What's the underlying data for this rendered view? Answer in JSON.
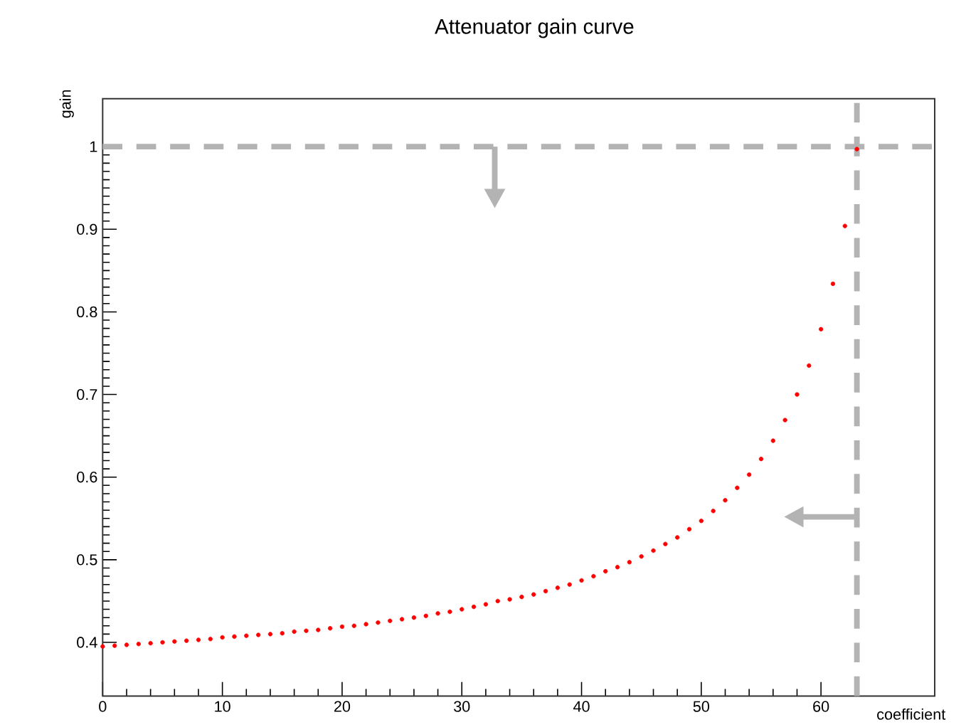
{
  "chart_data": {
    "type": "scatter",
    "title": "Attenuator gain curve",
    "xlabel": "coefficient",
    "ylabel": "gain",
    "x": [
      0,
      1,
      2,
      3,
      4,
      5,
      6,
      7,
      8,
      9,
      10,
      11,
      12,
      13,
      14,
      15,
      16,
      17,
      18,
      19,
      20,
      21,
      22,
      23,
      24,
      25,
      26,
      27,
      28,
      29,
      30,
      31,
      32,
      33,
      34,
      35,
      36,
      37,
      38,
      39,
      40,
      41,
      42,
      43,
      44,
      45,
      46,
      47,
      48,
      49,
      50,
      51,
      52,
      53,
      54,
      55,
      56,
      57,
      58,
      59,
      60,
      61,
      62,
      63
    ],
    "values": [
      0.395,
      0.396,
      0.397,
      0.398,
      0.399,
      0.4,
      0.401,
      0.402,
      0.403,
      0.404,
      0.406,
      0.407,
      0.408,
      0.409,
      0.41,
      0.411,
      0.413,
      0.414,
      0.415,
      0.417,
      0.419,
      0.42,
      0.422,
      0.424,
      0.426,
      0.428,
      0.43,
      0.432,
      0.435,
      0.437,
      0.44,
      0.443,
      0.446,
      0.45,
      0.452,
      0.455,
      0.458,
      0.462,
      0.466,
      0.47,
      0.475,
      0.48,
      0.486,
      0.491,
      0.497,
      0.504,
      0.511,
      0.519,
      0.527,
      0.537,
      0.547,
      0.559,
      0.572,
      0.587,
      0.603,
      0.622,
      0.644,
      0.669,
      0.7,
      0.735,
      0.779,
      0.834,
      0.904,
      0.997
    ],
    "color": "#ff0000",
    "marker": "circle",
    "grid": false,
    "xlim": [
      0,
      69.5
    ],
    "ylim": [
      0.335,
      1.058
    ],
    "xticks": [
      0,
      10,
      20,
      30,
      40,
      50,
      60
    ],
    "yticks": [
      0.4,
      0.5,
      0.6,
      0.7,
      0.8,
      0.9,
      1
    ],
    "ref_lines": [
      {
        "axis": "y",
        "value": 1,
        "color": "#b3b3b3",
        "line_style": "dashed"
      },
      {
        "axis": "x",
        "value": 63,
        "color": "#b3b3b3",
        "line_style": "dashed"
      }
    ]
  }
}
